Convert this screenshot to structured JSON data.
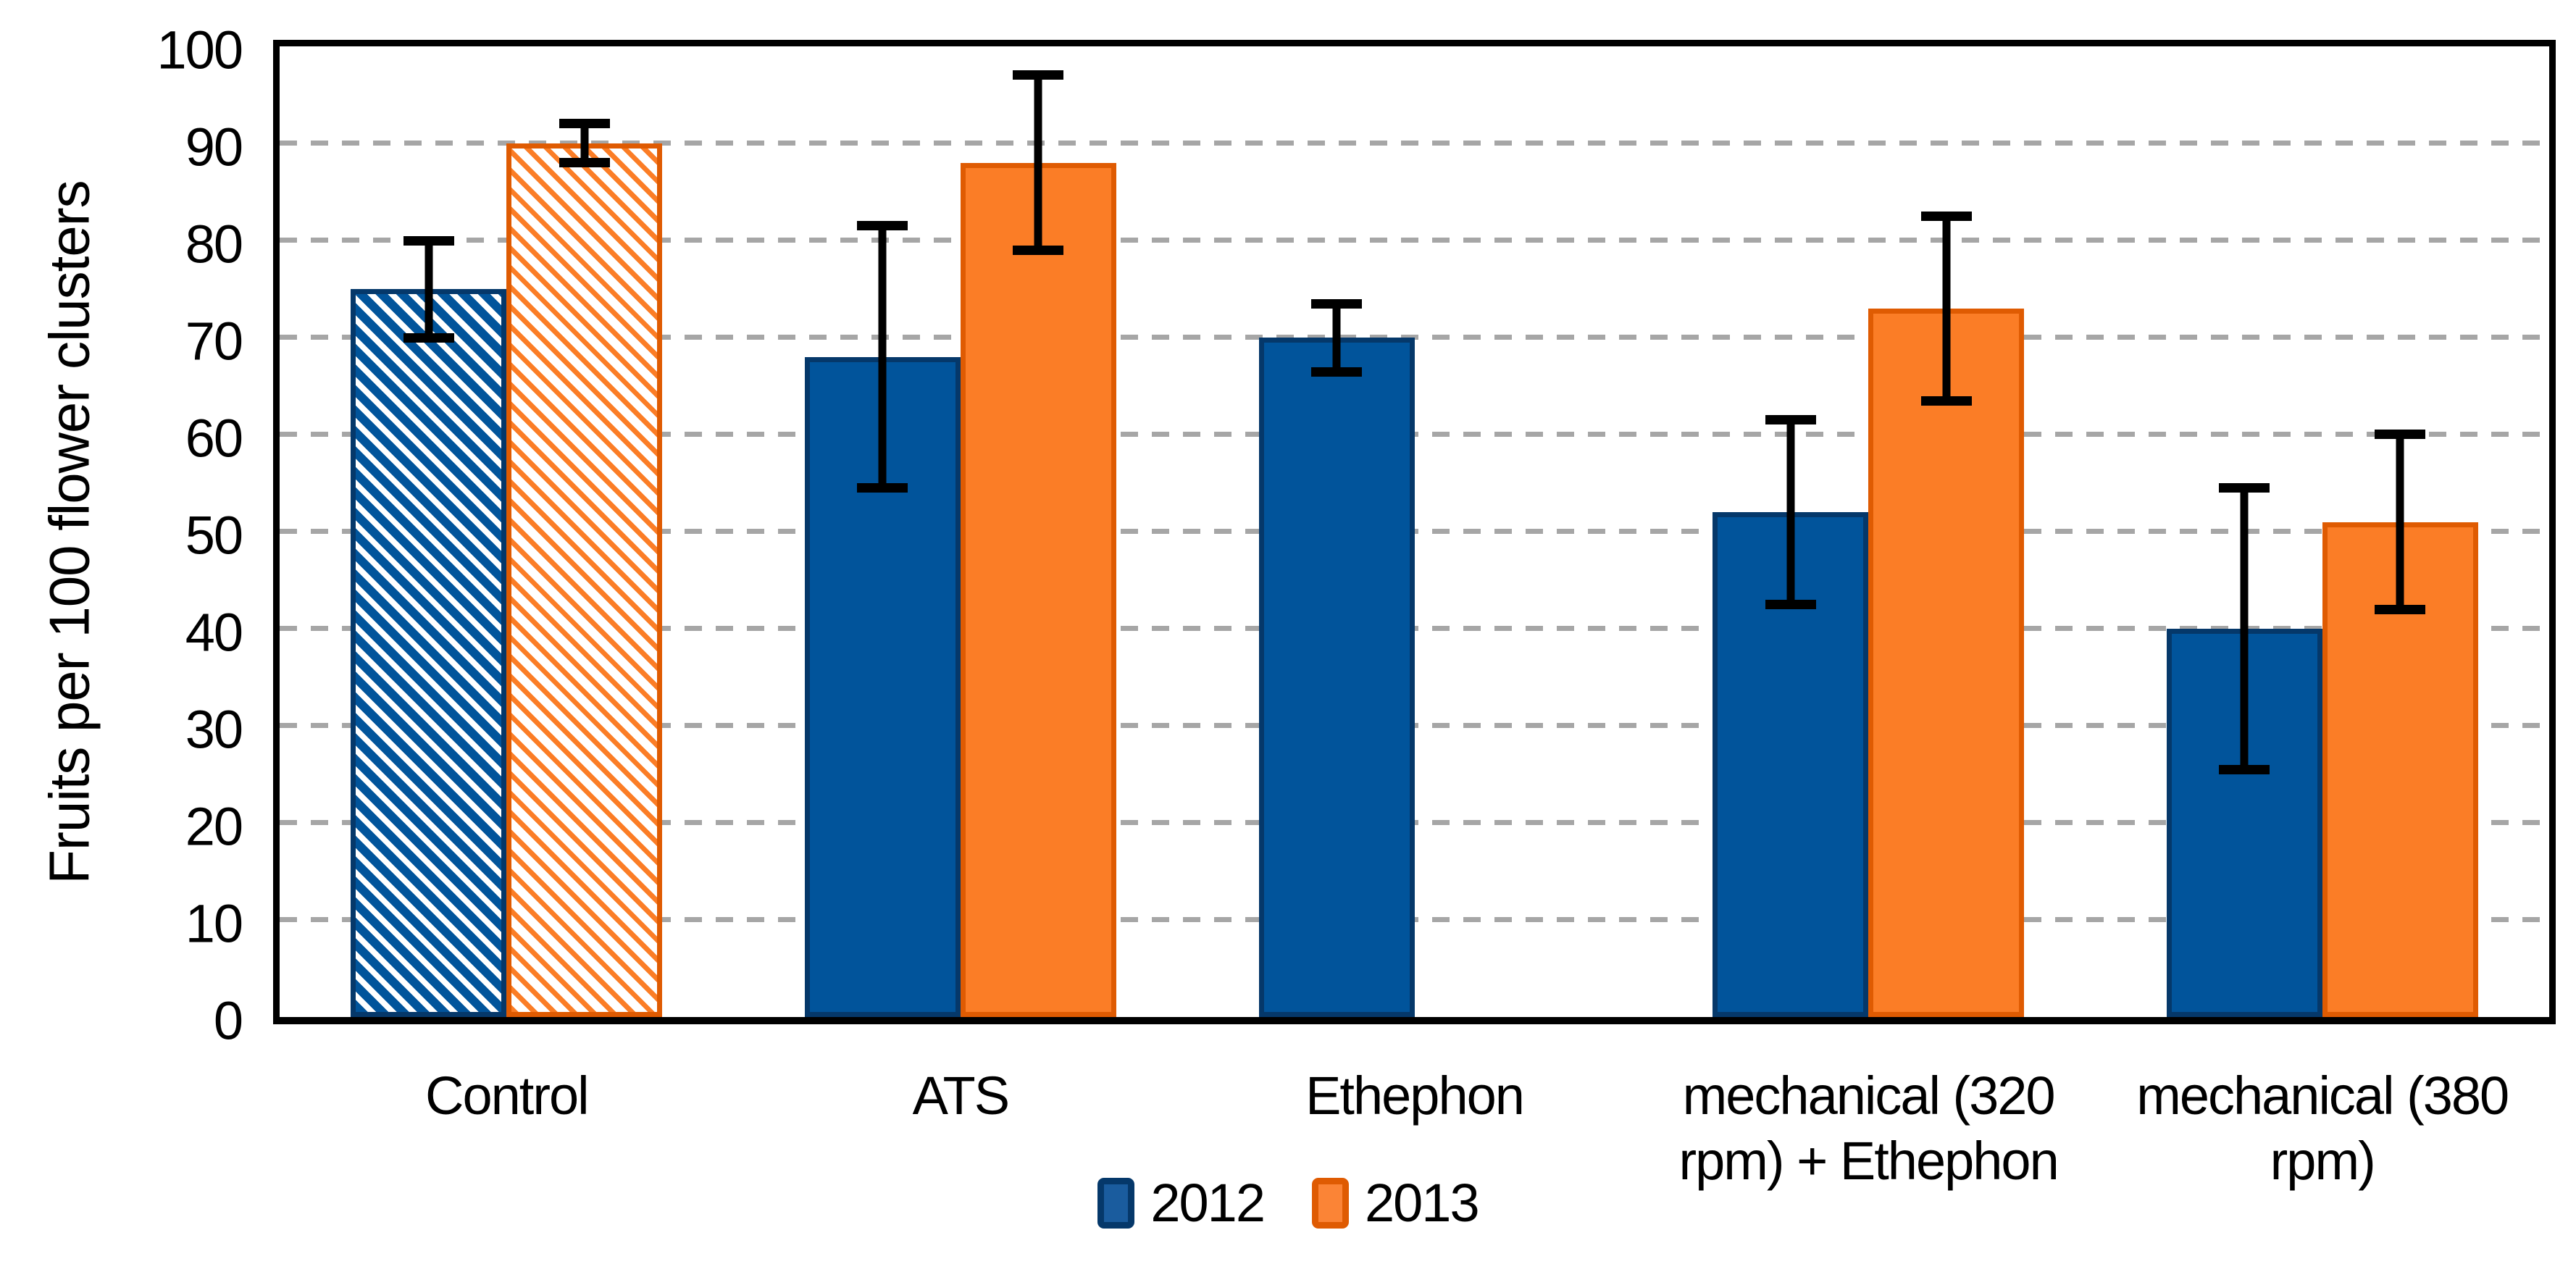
{
  "chart_data": {
    "type": "bar",
    "title": "",
    "ylabel": "Fruits per 100 flower clusters",
    "xlabel": "",
    "ylim": [
      0,
      100
    ],
    "y_ticks": [
      0,
      10,
      20,
      30,
      40,
      50,
      60,
      70,
      80,
      90,
      100
    ],
    "grid": "dashed horizontal",
    "grid_color": "#A6A6A6",
    "legend_position": "bottom-center",
    "categories": [
      "Control",
      "ATS",
      "Ethephon",
      "mechanical (320 rpm) + Ethephon",
      "mechanical (380 rpm)"
    ],
    "series": [
      {
        "name": "2012",
        "fill_color": "#01549B",
        "border_color": "#05386A",
        "values": [
          75,
          68,
          70,
          52,
          40
        ],
        "err_low": [
          69.5,
          54,
          66,
          42,
          25
        ],
        "err_high": [
          80.5,
          82,
          74,
          62,
          55
        ],
        "hatched": [
          true,
          false,
          false,
          false,
          false
        ]
      },
      {
        "name": "2013",
        "fill_color": "#FB7D26",
        "border_color": "#DF5B02",
        "values": [
          90,
          88,
          null,
          73,
          51
        ],
        "err_low": [
          87.5,
          78.5,
          null,
          63,
          41.5
        ],
        "err_high": [
          92.5,
          97.5,
          null,
          83,
          60.5
        ],
        "hatched": [
          true,
          false,
          false,
          false,
          false
        ]
      }
    ],
    "error_bar_color": "#000000",
    "axis_color": "#000000"
  }
}
